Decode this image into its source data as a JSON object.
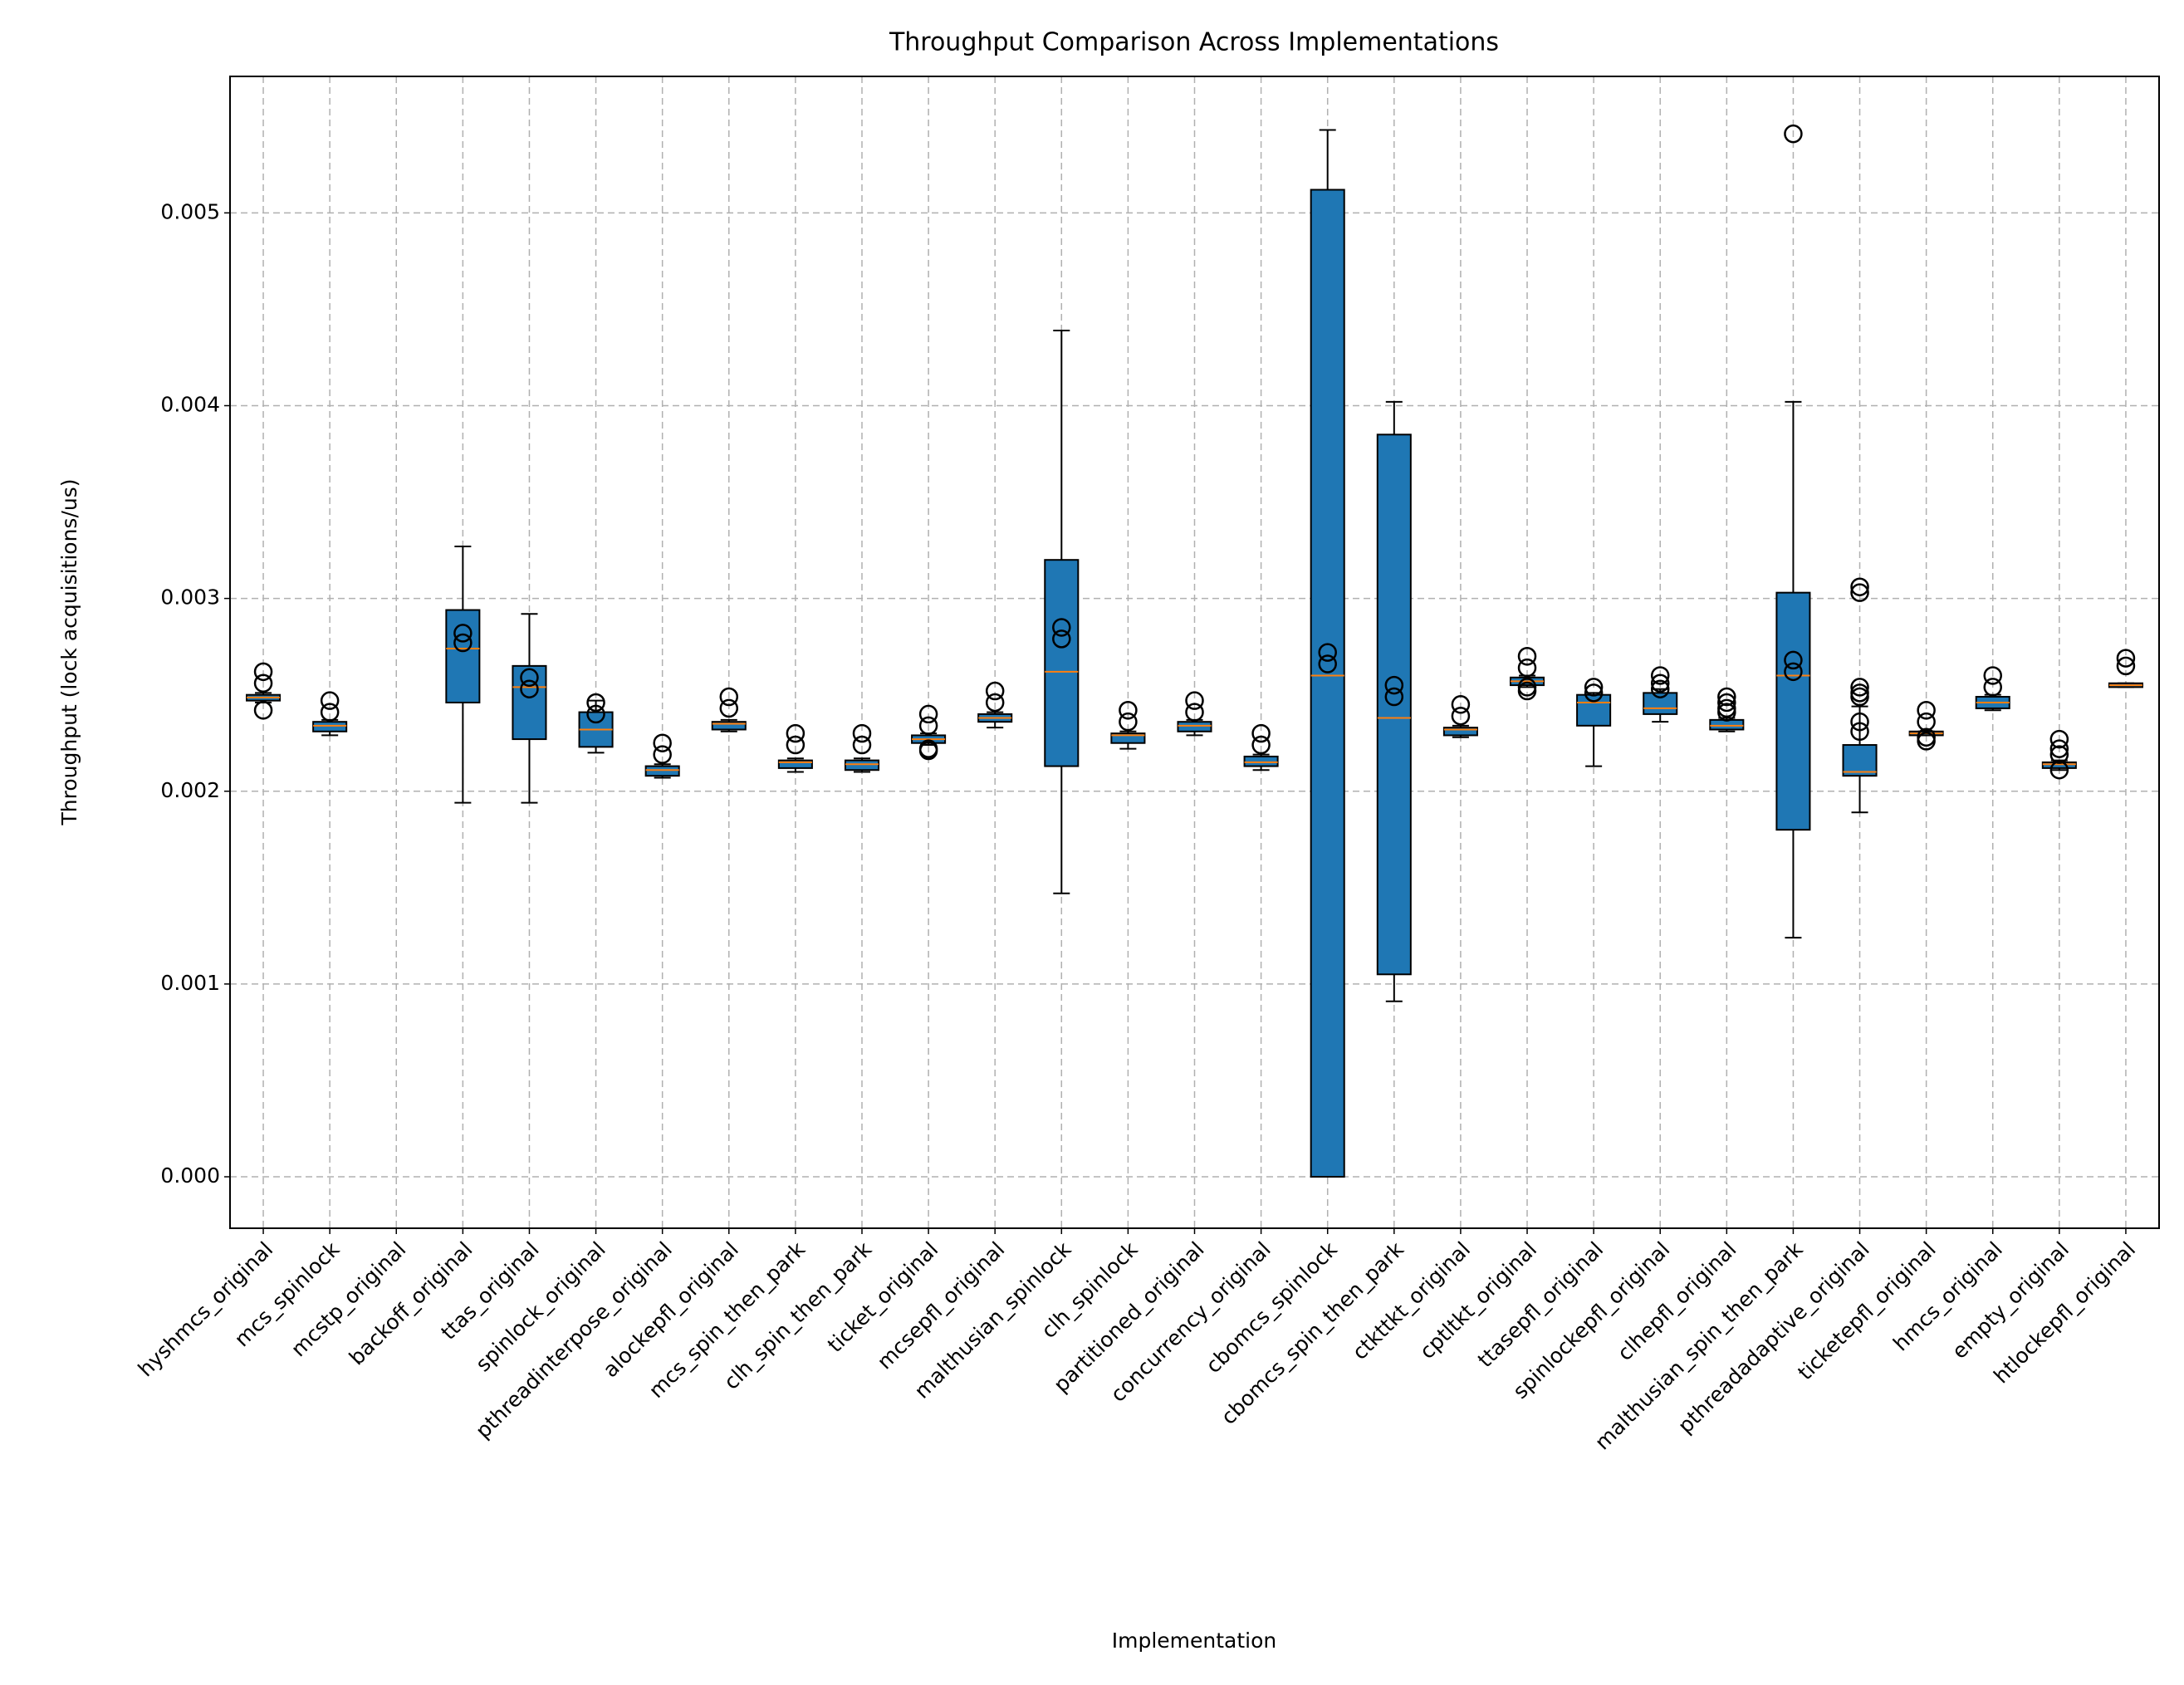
{
  "chart_data": {
    "type": "box",
    "title": "Throughput Comparison Across Implementations",
    "x_label": "Implementation",
    "y_label": "Throughput (lock acquisitions/us)",
    "categories": [
      "hyshmcs_original",
      "mcs_spinlock",
      "mcstp_original",
      "backoff_original",
      "ttas_original",
      "spinlock_original",
      "pthreadinterpose_original",
      "alockepfl_original",
      "mcs_spin_then_park",
      "clh_spin_then_park",
      "ticket_original",
      "mcsepfl_original",
      "malthusian_spinlock",
      "clh_spinlock",
      "partitioned_original",
      "concurrency_original",
      "cbomcs_spinlock",
      "cbomcs_spin_then_park",
      "ctkttkt_original",
      "cptltkt_original",
      "ttasepfl_original",
      "spinlockepfl_original",
      "clhepfl_original",
      "malthusian_spin_then_park",
      "pthreadadaptive_original",
      "ticketepfl_original",
      "hmcs_original",
      "empty_original",
      "htlockepfl_original"
    ],
    "boxes": [
      {
        "whislo": 0.00246,
        "q1": 0.00247,
        "med": 0.002486,
        "q3": 0.0025,
        "whishi": 0.00251,
        "fliers": [
          0.00262,
          0.00256,
          0.00242
        ]
      },
      {
        "whislo": 0.00229,
        "q1": 0.00231,
        "med": 0.00234,
        "q3": 0.00236,
        "whishi": 0.00237,
        "fliers": [
          0.00247,
          0.00241
        ]
      },
      null,
      {
        "whislo": 0.00194,
        "q1": 0.00246,
        "med": 0.00274,
        "q3": 0.00294,
        "whishi": 0.00327,
        "fliers": [
          0.00282,
          0.00277
        ]
      },
      {
        "whislo": 0.00194,
        "q1": 0.00227,
        "med": 0.00254,
        "q3": 0.00265,
        "whishi": 0.00292,
        "fliers": [
          0.00259,
          0.00253
        ]
      },
      {
        "whislo": 0.0022,
        "q1": 0.00223,
        "med": 0.00232,
        "q3": 0.00241,
        "whishi": 0.00247,
        "fliers": [
          0.00246,
          0.0024
        ]
      },
      {
        "whislo": 0.00207,
        "q1": 0.00208,
        "med": 0.00211,
        "q3": 0.00213,
        "whishi": 0.00214,
        "fliers": [
          0.00225,
          0.00219
        ]
      },
      {
        "whislo": 0.00231,
        "q1": 0.00232,
        "med": 0.00235,
        "q3": 0.00236,
        "whishi": 0.00237,
        "fliers": [
          0.00249,
          0.00243
        ]
      },
      {
        "whislo": 0.0021,
        "q1": 0.00212,
        "med": 0.00215,
        "q3": 0.00216,
        "whishi": 0.00217,
        "fliers": [
          0.0023,
          0.00224
        ]
      },
      {
        "whislo": 0.0021,
        "q1": 0.00211,
        "med": 0.00214,
        "q3": 0.00216,
        "whishi": 0.00217,
        "fliers": [
          0.0023,
          0.00224
        ]
      },
      {
        "whislo": 0.00224,
        "q1": 0.00225,
        "med": 0.00227,
        "q3": 0.00229,
        "whishi": 0.0023,
        "fliers": [
          0.0024,
          0.00234,
          0.00221,
          0.00222
        ]
      },
      {
        "whislo": 0.00233,
        "q1": 0.00236,
        "med": 0.00238,
        "q3": 0.0024,
        "whishi": 0.00241,
        "fliers": [
          0.00252,
          0.00246
        ]
      },
      {
        "whislo": 0.00147,
        "q1": 0.00213,
        "med": 0.00262,
        "q3": 0.0032,
        "whishi": 0.00439,
        "fliers": [
          0.00285,
          0.00279
        ]
      },
      {
        "whislo": 0.00222,
        "q1": 0.00225,
        "med": 0.00229,
        "q3": 0.0023,
        "whishi": 0.00231,
        "fliers": [
          0.00242,
          0.00236
        ]
      },
      {
        "whislo": 0.00229,
        "q1": 0.00231,
        "med": 0.00234,
        "q3": 0.00236,
        "whishi": 0.00237,
        "fliers": [
          0.00247,
          0.00241
        ]
      },
      {
        "whislo": 0.00211,
        "q1": 0.00213,
        "med": 0.00215,
        "q3": 0.00218,
        "whishi": 0.00219,
        "fliers": [
          0.0023,
          0.00224
        ]
      },
      {
        "whislo": 0.0,
        "q1": 0.0,
        "med": 0.0026,
        "q3": 0.00512,
        "whishi": 0.00543,
        "fliers": [
          0.00272,
          0.00266
        ]
      },
      {
        "whislo": 0.00091,
        "q1": 0.00105,
        "med": 0.00238,
        "q3": 0.00385,
        "whishi": 0.00402,
        "fliers": [
          0.00255,
          0.00249
        ]
      },
      {
        "whislo": 0.00228,
        "q1": 0.00229,
        "med": 0.00232,
        "q3": 0.00233,
        "whishi": 0.00234,
        "fliers": [
          0.00245,
          0.00239
        ]
      },
      {
        "whislo": 0.00254,
        "q1": 0.00255,
        "med": 0.00257,
        "q3": 0.00259,
        "whishi": 0.0026,
        "fliers": [
          0.0027,
          0.00264,
          0.00252,
          0.00254
        ]
      },
      {
        "whislo": 0.00213,
        "q1": 0.00234,
        "med": 0.00246,
        "q3": 0.0025,
        "whishi": 0.00251,
        "fliers": [
          0.00254,
          0.00251
        ]
      },
      {
        "whislo": 0.00236,
        "q1": 0.0024,
        "med": 0.00243,
        "q3": 0.00251,
        "whishi": 0.00253,
        "fliers": [
          0.0026,
          0.00256,
          0.00253
        ]
      },
      {
        "whislo": 0.00231,
        "q1": 0.00232,
        "med": 0.00234,
        "q3": 0.00237,
        "whishi": 0.00238,
        "fliers": [
          0.00249,
          0.00246,
          0.00243,
          0.00241
        ]
      },
      {
        "whislo": 0.00124,
        "q1": 0.0018,
        "med": 0.0026,
        "q3": 0.00303,
        "whishi": 0.00402,
        "fliers": [
          0.00541,
          0.00268,
          0.00262
        ]
      },
      {
        "whislo": 0.00189,
        "q1": 0.00208,
        "med": 0.0021,
        "q3": 0.00224,
        "whishi": 0.00244,
        "fliers": [
          0.00306,
          0.00303,
          0.00254,
          0.00251,
          0.00249,
          0.00236,
          0.00231
        ]
      },
      {
        "whislo": 0.00229,
        "q1": 0.00229,
        "med": 0.0023,
        "q3": 0.00231,
        "whishi": 0.00231,
        "fliers": [
          0.00242,
          0.00236,
          0.00228,
          0.00226
        ]
      },
      {
        "whislo": 0.00242,
        "q1": 0.00243,
        "med": 0.00246,
        "q3": 0.00249,
        "whishi": 0.0025,
        "fliers": [
          0.0026,
          0.00254
        ]
      },
      {
        "whislo": 0.00211,
        "q1": 0.00212,
        "med": 0.00214,
        "q3": 0.00215,
        "whishi": 0.00216,
        "fliers": [
          0.00227,
          0.00222,
          0.00219,
          0.00211
        ]
      },
      {
        "whislo": 0.00254,
        "q1": 0.00254,
        "med": 0.00255,
        "q3": 0.00256,
        "whishi": 0.00256,
        "fliers": [
          0.00269,
          0.00265
        ]
      }
    ],
    "box_color": "#1f77b4",
    "median_color": "#ff7f0e",
    "ylim": [
      -0.000267,
      0.005708
    ],
    "yticks": [
      {
        "value": 0,
        "label": "0.000"
      },
      0.001,
      0.002,
      0.003,
      0.004,
      0.005
    ],
    "grid": true
  }
}
